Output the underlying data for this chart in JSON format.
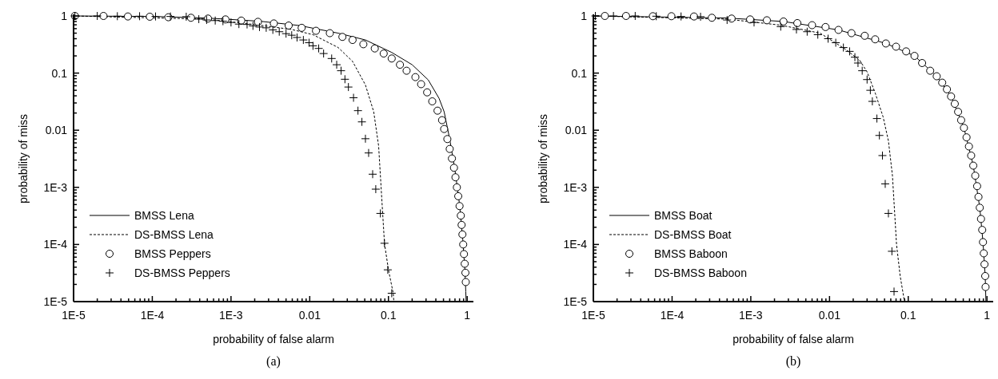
{
  "chart_data": [
    {
      "type": "line",
      "xlabel": "probability of false alarm",
      "ylabel": "probability of miss",
      "annotations": [
        "(a)"
      ],
      "log": "xy",
      "legend": "bottom left",
      "xlim": [
        1e-05,
        1.2
      ],
      "ylim": [
        1e-05,
        1
      ],
      "xticks": [
        {
          "value": 1e-05,
          "label": "1E-5"
        },
        {
          "value": 2e-05,
          "label": null
        },
        {
          "value": 3e-05,
          "label": null
        },
        {
          "value": 4e-05,
          "label": null
        },
        {
          "value": 5e-05,
          "label": null
        },
        {
          "value": 6e-05,
          "label": null
        },
        {
          "value": 7e-05,
          "label": null
        },
        {
          "value": 8e-05,
          "label": null
        },
        {
          "value": 9e-05,
          "label": null
        },
        {
          "value": 0.0001,
          "label": "1E-4"
        },
        {
          "value": 0.0002,
          "label": null
        },
        {
          "value": 0.0003,
          "label": null
        },
        {
          "value": 0.0004,
          "label": null
        },
        {
          "value": 0.0005,
          "label": null
        },
        {
          "value": 0.0006,
          "label": null
        },
        {
          "value": 0.0007,
          "label": null
        },
        {
          "value": 0.0008,
          "label": null
        },
        {
          "value": 0.0009,
          "label": null
        },
        {
          "value": 0.001,
          "label": "1E-3"
        },
        {
          "value": 0.002,
          "label": null
        },
        {
          "value": 0.003,
          "label": null
        },
        {
          "value": 0.004,
          "label": null
        },
        {
          "value": 0.005,
          "label": null
        },
        {
          "value": 0.006,
          "label": null
        },
        {
          "value": 0.007,
          "label": null
        },
        {
          "value": 0.008,
          "label": null
        },
        {
          "value": 0.009,
          "label": null
        },
        0.01,
        {
          "value": 0.02,
          "label": null
        },
        {
          "value": 0.03,
          "label": null
        },
        {
          "value": 0.04,
          "label": null
        },
        {
          "value": 0.05,
          "label": null
        },
        {
          "value": 0.06,
          "label": null
        },
        {
          "value": 0.07,
          "label": null
        },
        {
          "value": 0.08,
          "label": null
        },
        {
          "value": 0.09,
          "label": null
        },
        0.1,
        {
          "value": 0.2,
          "label": null
        },
        {
          "value": 0.3,
          "label": null
        },
        {
          "value": 0.4,
          "label": null
        },
        {
          "value": 0.5,
          "label": null
        },
        {
          "value": 0.6,
          "label": null
        },
        {
          "value": 0.7,
          "label": null
        },
        {
          "value": 0.8,
          "label": null
        },
        {
          "value": 0.9,
          "label": null
        },
        1
      ],
      "yticks": [
        {
          "value": 1e-05,
          "label": "1E-5"
        },
        {
          "value": 2e-05,
          "label": null
        },
        {
          "value": 3e-05,
          "label": null
        },
        {
          "value": 4e-05,
          "label": null
        },
        {
          "value": 5e-05,
          "label": null
        },
        {
          "value": 6e-05,
          "label": null
        },
        {
          "value": 7e-05,
          "label": null
        },
        {
          "value": 8e-05,
          "label": null
        },
        {
          "value": 9e-05,
          "label": null
        },
        {
          "value": 0.0001,
          "label": "1E-4"
        },
        {
          "value": 0.0002,
          "label": null
        },
        {
          "value": 0.0003,
          "label": null
        },
        {
          "value": 0.0004,
          "label": null
        },
        {
          "value": 0.0005,
          "label": null
        },
        {
          "value": 0.0006,
          "label": null
        },
        {
          "value": 0.0007,
          "label": null
        },
        {
          "value": 0.0008,
          "label": null
        },
        {
          "value": 0.0009,
          "label": null
        },
        {
          "value": 0.001,
          "label": "1E-3"
        },
        {
          "value": 0.002,
          "label": null
        },
        {
          "value": 0.003,
          "label": null
        },
        {
          "value": 0.004,
          "label": null
        },
        {
          "value": 0.005,
          "label": null
        },
        {
          "value": 0.006,
          "label": null
        },
        {
          "value": 0.007,
          "label": null
        },
        {
          "value": 0.008,
          "label": null
        },
        {
          "value": 0.009,
          "label": null
        },
        0.01,
        {
          "value": 0.02,
          "label": null
        },
        {
          "value": 0.03,
          "label": null
        },
        {
          "value": 0.04,
          "label": null
        },
        {
          "value": 0.05,
          "label": null
        },
        {
          "value": 0.06,
          "label": null
        },
        {
          "value": 0.07,
          "label": null
        },
        {
          "value": 0.08,
          "label": null
        },
        {
          "value": 0.09,
          "label": null
        },
        0.1,
        {
          "value": 0.2,
          "label": null
        },
        {
          "value": 0.3,
          "label": null
        },
        {
          "value": 0.4,
          "label": null
        },
        {
          "value": 0.5,
          "label": null
        },
        {
          "value": 0.6,
          "label": null
        },
        {
          "value": 0.7,
          "label": null
        },
        {
          "value": 0.8,
          "label": null
        },
        {
          "value": 0.9,
          "label": null
        },
        1
      ],
      "series": [
        {
          "name": "BMSS Lena",
          "type": "line",
          "line_style": "solid",
          "color": "#000000",
          "x": [
            1e-05,
            0.000105,
            0.00049,
            0.0023,
            0.0074,
            0.023,
            0.051,
            0.11,
            0.2,
            0.32,
            0.44,
            0.51,
            0.6,
            0.7,
            0.8,
            0.88,
            0.93,
            0.96,
            0.97
          ],
          "values": [
            1,
            0.98,
            0.92,
            0.81,
            0.68,
            0.5,
            0.38,
            0.23,
            0.14,
            0.076,
            0.036,
            0.021,
            0.007,
            0.002,
            0.0005,
            0.00012,
            4e-05,
            1.5e-05,
            1e-05
          ]
        },
        {
          "name": "DS-BMSS Lena",
          "type": "line",
          "line_style": "dashed",
          "color": "#000000",
          "x": [
            1e-05,
            0.00049,
            0.0023,
            0.0059,
            0.011,
            0.023,
            0.035,
            0.051,
            0.065,
            0.075,
            0.08,
            0.089,
            0.1,
            0.115,
            0.117
          ],
          "values": [
            1,
            0.88,
            0.69,
            0.58,
            0.47,
            0.28,
            0.16,
            0.062,
            0.021,
            0.0053,
            0.0012,
            0.000105,
            3.6e-05,
            1.4e-05,
            1e-05
          ]
        },
        {
          "name": "BMSS Peppers",
          "type": "scatter",
          "marker": "circle",
          "color": "#000000",
          "x": [
            1.04e-05,
            2.4e-05,
            4.9e-05,
            9.3e-05,
            0.00016,
            0.00031,
            0.00051,
            0.00085,
            0.00135,
            0.0022,
            0.0035,
            0.0054,
            0.0079,
            0.012,
            0.018,
            0.026,
            0.035,
            0.048,
            0.067,
            0.087,
            0.11,
            0.14,
            0.17,
            0.22,
            0.26,
            0.31,
            0.36,
            0.42,
            0.48,
            0.51,
            0.56,
            0.6,
            0.64,
            0.68,
            0.71,
            0.74,
            0.77,
            0.8,
            0.83,
            0.85,
            0.87,
            0.89,
            0.91,
            0.93,
            0.95,
            0.96
          ],
          "values": [
            1,
            1,
            0.98,
            0.97,
            0.95,
            0.93,
            0.9,
            0.87,
            0.83,
            0.79,
            0.74,
            0.68,
            0.62,
            0.55,
            0.5,
            0.43,
            0.38,
            0.32,
            0.27,
            0.22,
            0.18,
            0.14,
            0.11,
            0.085,
            0.064,
            0.046,
            0.032,
            0.022,
            0.015,
            0.0105,
            0.007,
            0.0047,
            0.0032,
            0.0022,
            0.0015,
            0.001,
            0.0007,
            0.00047,
            0.00032,
            0.00022,
            0.00015,
            0.0001,
            6.8e-05,
            4.6e-05,
            3.2e-05,
            2.2e-05
          ]
        },
        {
          "name": "DS-BMSS Peppers",
          "type": "scatter",
          "marker": "cross",
          "color": "#000000",
          "x": [
            1.04e-05,
            2e-05,
            3.6e-05,
            6.9e-05,
            0.00011,
            0.00017,
            0.00027,
            0.00039,
            0.00049,
            0.00063,
            0.00079,
            0.001,
            0.00126,
            0.0016,
            0.0019,
            0.0023,
            0.0028,
            0.0034,
            0.0041,
            0.005,
            0.0059,
            0.0069,
            0.0083,
            0.0098,
            0.011,
            0.013,
            0.015,
            0.019,
            0.022,
            0.025,
            0.028,
            0.031,
            0.036,
            0.041,
            0.046,
            0.051,
            0.056,
            0.063,
            0.069,
            0.079,
            0.089,
            0.098,
            0.11
          ],
          "values": [
            1,
            1,
            0.99,
            0.99,
            0.98,
            0.98,
            0.97,
            0.88,
            0.85,
            0.83,
            0.81,
            0.77,
            0.72,
            0.71,
            0.67,
            0.64,
            0.62,
            0.57,
            0.53,
            0.49,
            0.46,
            0.42,
            0.38,
            0.34,
            0.3,
            0.27,
            0.22,
            0.18,
            0.14,
            0.11,
            0.078,
            0.057,
            0.037,
            0.022,
            0.014,
            0.0071,
            0.004,
            0.0017,
            0.00093,
            0.00035,
            0.000105,
            3.6e-05,
            1.4e-05
          ]
        }
      ]
    },
    {
      "type": "line",
      "xlabel": "probability of false alarm",
      "ylabel": "probability of miss",
      "annotations": [
        "(b)"
      ],
      "log": "xy",
      "legend": "bottom left",
      "xlim": [
        1e-05,
        1.2
      ],
      "ylim": [
        1e-05,
        1
      ],
      "xticks": [
        {
          "value": 1e-05,
          "label": "1E-5"
        },
        {
          "value": 2e-05,
          "label": null
        },
        {
          "value": 3e-05,
          "label": null
        },
        {
          "value": 4e-05,
          "label": null
        },
        {
          "value": 5e-05,
          "label": null
        },
        {
          "value": 6e-05,
          "label": null
        },
        {
          "value": 7e-05,
          "label": null
        },
        {
          "value": 8e-05,
          "label": null
        },
        {
          "value": 9e-05,
          "label": null
        },
        {
          "value": 0.0001,
          "label": "1E-4"
        },
        {
          "value": 0.0002,
          "label": null
        },
        {
          "value": 0.0003,
          "label": null
        },
        {
          "value": 0.0004,
          "label": null
        },
        {
          "value": 0.0005,
          "label": null
        },
        {
          "value": 0.0006,
          "label": null
        },
        {
          "value": 0.0007,
          "label": null
        },
        {
          "value": 0.0008,
          "label": null
        },
        {
          "value": 0.0009,
          "label": null
        },
        {
          "value": 0.001,
          "label": "1E-3"
        },
        {
          "value": 0.002,
          "label": null
        },
        {
          "value": 0.003,
          "label": null
        },
        {
          "value": 0.004,
          "label": null
        },
        {
          "value": 0.005,
          "label": null
        },
        {
          "value": 0.006,
          "label": null
        },
        {
          "value": 0.007,
          "label": null
        },
        {
          "value": 0.008,
          "label": null
        },
        {
          "value": 0.009,
          "label": null
        },
        0.01,
        {
          "value": 0.02,
          "label": null
        },
        {
          "value": 0.03,
          "label": null
        },
        {
          "value": 0.04,
          "label": null
        },
        {
          "value": 0.05,
          "label": null
        },
        {
          "value": 0.06,
          "label": null
        },
        {
          "value": 0.07,
          "label": null
        },
        {
          "value": 0.08,
          "label": null
        },
        {
          "value": 0.09,
          "label": null
        },
        0.1,
        {
          "value": 0.2,
          "label": null
        },
        {
          "value": 0.3,
          "label": null
        },
        {
          "value": 0.4,
          "label": null
        },
        {
          "value": 0.5,
          "label": null
        },
        {
          "value": 0.6,
          "label": null
        },
        {
          "value": 0.7,
          "label": null
        },
        {
          "value": 0.8,
          "label": null
        },
        {
          "value": 0.9,
          "label": null
        },
        1
      ],
      "yticks": [
        {
          "value": 1e-05,
          "label": "1E-5"
        },
        {
          "value": 2e-05,
          "label": null
        },
        {
          "value": 3e-05,
          "label": null
        },
        {
          "value": 4e-05,
          "label": null
        },
        {
          "value": 5e-05,
          "label": null
        },
        {
          "value": 6e-05,
          "label": null
        },
        {
          "value": 7e-05,
          "label": null
        },
        {
          "value": 8e-05,
          "label": null
        },
        {
          "value": 9e-05,
          "label": null
        },
        {
          "value": 0.0001,
          "label": "1E-4"
        },
        {
          "value": 0.0002,
          "label": null
        },
        {
          "value": 0.0003,
          "label": null
        },
        {
          "value": 0.0004,
          "label": null
        },
        {
          "value": 0.0005,
          "label": null
        },
        {
          "value": 0.0006,
          "label": null
        },
        {
          "value": 0.0007,
          "label": null
        },
        {
          "value": 0.0008,
          "label": null
        },
        {
          "value": 0.0009,
          "label": null
        },
        {
          "value": 0.001,
          "label": "1E-3"
        },
        {
          "value": 0.002,
          "label": null
        },
        {
          "value": 0.003,
          "label": null
        },
        {
          "value": 0.004,
          "label": null
        },
        {
          "value": 0.005,
          "label": null
        },
        {
          "value": 0.006,
          "label": null
        },
        {
          "value": 0.007,
          "label": null
        },
        {
          "value": 0.008,
          "label": null
        },
        {
          "value": 0.009,
          "label": null
        },
        0.01,
        {
          "value": 0.02,
          "label": null
        },
        {
          "value": 0.03,
          "label": null
        },
        {
          "value": 0.04,
          "label": null
        },
        {
          "value": 0.05,
          "label": null
        },
        {
          "value": 0.06,
          "label": null
        },
        {
          "value": 0.07,
          "label": null
        },
        {
          "value": 0.08,
          "label": null
        },
        {
          "value": 0.09,
          "label": null
        },
        0.1,
        {
          "value": 0.2,
          "label": null
        },
        {
          "value": 0.3,
          "label": null
        },
        {
          "value": 0.4,
          "label": null
        },
        {
          "value": 0.5,
          "label": null
        },
        {
          "value": 0.6,
          "label": null
        },
        {
          "value": 0.7,
          "label": null
        },
        {
          "value": 0.8,
          "label": null
        },
        {
          "value": 0.9,
          "label": null
        },
        1
      ],
      "series": [
        {
          "name": "BMSS Boat",
          "type": "line",
          "line_style": "solid",
          "color": "#000000",
          "x": [
            1e-05,
            0.0005,
            0.0026,
            0.013,
            0.052,
            0.12,
            0.23,
            0.35,
            0.51,
            0.67,
            0.81,
            0.89,
            0.95,
            0.97
          ],
          "values": [
            1,
            0.92,
            0.8,
            0.57,
            0.33,
            0.2,
            0.088,
            0.039,
            0.011,
            0.0024,
            0.00044,
            0.00011,
            2.8e-05,
            1e-05
          ]
        },
        {
          "name": "DS-BMSS Boat",
          "type": "line",
          "line_style": "dashed",
          "color": "#000000",
          "x": [
            1e-05,
            0.0005,
            0.0024,
            0.0076,
            0.016,
            0.024,
            0.03,
            0.038,
            0.048,
            0.056,
            0.063,
            0.071,
            0.079,
            0.089
          ],
          "values": [
            1,
            0.88,
            0.69,
            0.5,
            0.26,
            0.17,
            0.105,
            0.045,
            0.017,
            0.0065,
            0.0016,
            0.0001,
            2.8e-05,
            1.05e-05
          ]
        },
        {
          "name": "BMSS Baboon",
          "type": "scatter",
          "marker": "circle",
          "color": "#000000",
          "x": [
            1.4e-05,
            2.6e-05,
            5.7e-05,
            9.8e-05,
            0.00019,
            0.00032,
            0.00057,
            0.00098,
            0.0016,
            0.0026,
            0.0039,
            0.006,
            0.0089,
            0.013,
            0.019,
            0.028,
            0.038,
            0.052,
            0.07,
            0.094,
            0.12,
            0.15,
            0.19,
            0.23,
            0.27,
            0.31,
            0.35,
            0.39,
            0.43,
            0.47,
            0.51,
            0.55,
            0.59,
            0.63,
            0.67,
            0.71,
            0.75,
            0.78,
            0.81,
            0.84,
            0.87,
            0.89,
            0.91,
            0.93,
            0.95,
            0.96
          ],
          "values": [
            1,
            1,
            0.99,
            0.99,
            0.98,
            0.93,
            0.9,
            0.87,
            0.84,
            0.8,
            0.75,
            0.69,
            0.64,
            0.57,
            0.5,
            0.45,
            0.39,
            0.33,
            0.29,
            0.24,
            0.2,
            0.15,
            0.11,
            0.088,
            0.068,
            0.052,
            0.039,
            0.029,
            0.021,
            0.015,
            0.011,
            0.0075,
            0.0052,
            0.0036,
            0.0024,
            0.0016,
            0.00105,
            0.00068,
            0.00044,
            0.00028,
            0.00018,
            0.00011,
            7e-05,
            4.5e-05,
            2.8e-05,
            1.8e-05
          ]
        },
        {
          "name": "DS-BMSS Baboon",
          "type": "scatter",
          "marker": "cross",
          "color": "#000000",
          "x": [
            1.06e-05,
            1.8e-05,
            3.4e-05,
            6.3e-05,
            0.00013,
            0.00023,
            0.0005,
            0.0011,
            0.0024,
            0.0038,
            0.0052,
            0.0071,
            0.0096,
            0.012,
            0.015,
            0.018,
            0.021,
            0.023,
            0.026,
            0.03,
            0.033,
            0.035,
            0.04,
            0.043,
            0.047,
            0.051,
            0.056,
            0.062,
            0.066
          ],
          "values": [
            1,
            1,
            1,
            0.99,
            0.98,
            0.97,
            0.85,
            0.77,
            0.65,
            0.58,
            0.53,
            0.47,
            0.4,
            0.34,
            0.28,
            0.24,
            0.19,
            0.15,
            0.11,
            0.077,
            0.05,
            0.032,
            0.016,
            0.0081,
            0.0036,
            0.00115,
            0.00035,
            7.6e-05,
            1.5e-05
          ]
        }
      ]
    }
  ]
}
